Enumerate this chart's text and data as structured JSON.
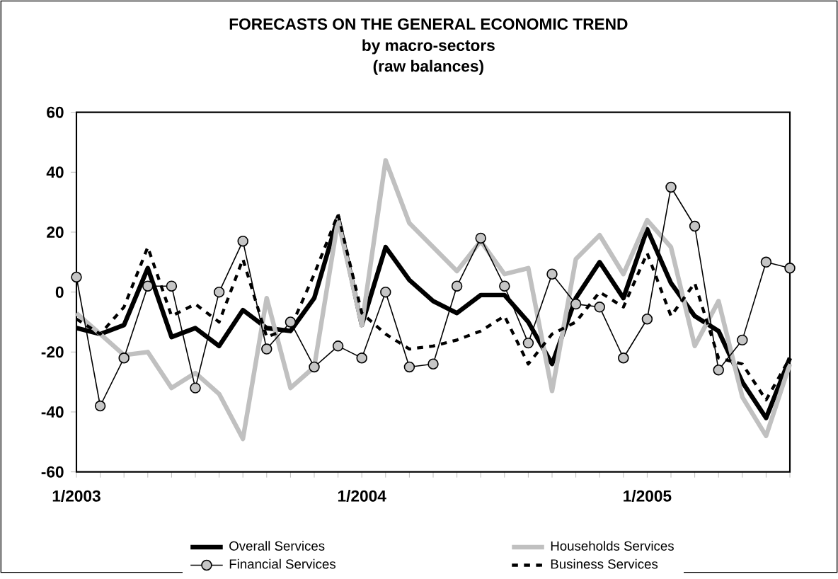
{
  "chart_data": {
    "type": "line",
    "title": "FORECASTS ON THE GENERAL ECONOMIC TREND",
    "subtitle": "by macro-sectors",
    "annotations": [
      "(raw balances)"
    ],
    "x": [
      "2003-01",
      "2003-02",
      "2003-03",
      "2003-04",
      "2003-05",
      "2003-06",
      "2003-07",
      "2003-08",
      "2003-09",
      "2003-10",
      "2003-11",
      "2003-12",
      "2004-01",
      "2004-02",
      "2004-03",
      "2004-04",
      "2004-05",
      "2004-06",
      "2004-07",
      "2004-08",
      "2004-09",
      "2004-10",
      "2004-11",
      "2004-12",
      "2005-01",
      "2005-02",
      "2005-03",
      "2005-04",
      "2005-05",
      "2005-06",
      "2005-07"
    ],
    "series": [
      {
        "name": "Overall Services",
        "color": "#000000",
        "line_style": "solid",
        "values": [
          -12,
          -14,
          -11,
          8,
          -15,
          -12,
          -18,
          -6,
          -12,
          -13,
          -2,
          25,
          -11,
          15,
          4,
          -3,
          -7,
          -1,
          -1,
          -10,
          -24,
          -2,
          10,
          -2,
          21,
          3,
          -8,
          -13,
          -30,
          -42,
          -22
        ]
      },
      {
        "name": "Households Services",
        "color": "#c0c0c0",
        "line_style": "solid",
        "values": [
          -7,
          -14,
          -21,
          -20,
          -32,
          -27,
          -34,
          -49,
          -2,
          -32,
          -25,
          24,
          -11,
          44,
          23,
          15,
          7,
          17,
          6,
          8,
          -33,
          11,
          19,
          6,
          24,
          15,
          -18,
          -3,
          -35,
          -48,
          -24
        ]
      },
      {
        "name": "Financial Services",
        "color": "#000000",
        "line_style": "solid",
        "marker": "circle",
        "values": [
          5,
          -38,
          -22,
          2,
          2,
          -32,
          0,
          17,
          -19,
          -10,
          -25,
          -18,
          -22,
          0,
          -25,
          -24,
          2,
          18,
          2,
          -17,
          6,
          -4,
          -5,
          -22,
          -9,
          35,
          22,
          -26,
          -16,
          10,
          8
        ]
      },
      {
        "name": "Business Services",
        "color": "#000000",
        "line_style": "dashed",
        "values": [
          -9,
          -14,
          -5,
          15,
          -8,
          -4,
          -10,
          11,
          -15,
          -12,
          6,
          26,
          -7,
          -14,
          -19,
          -18,
          -16,
          -13,
          -8,
          -24,
          -14,
          -10,
          0,
          -5,
          13,
          -8,
          3,
          -22,
          -24,
          -36,
          -22
        ]
      }
    ],
    "xlim": [
      "2003-01",
      "2005-07"
    ],
    "xticks": [
      {
        "value": "2003-01",
        "label": "1/2003"
      },
      {
        "value": "2003-02",
        "label": null
      },
      {
        "value": "2003-03",
        "label": null
      },
      {
        "value": "2003-04",
        "label": null
      },
      {
        "value": "2003-05",
        "label": null
      },
      {
        "value": "2003-06",
        "label": null
      },
      {
        "value": "2003-07",
        "label": null
      },
      {
        "value": "2003-08",
        "label": null
      },
      {
        "value": "2003-09",
        "label": null
      },
      {
        "value": "2003-10",
        "label": null
      },
      {
        "value": "2003-11",
        "label": null
      },
      {
        "value": "2003-12",
        "label": null
      },
      {
        "value": "2004-01",
        "label": "1/2004"
      },
      {
        "value": "2004-02",
        "label": null
      },
      {
        "value": "2004-03",
        "label": null
      },
      {
        "value": "2004-04",
        "label": null
      },
      {
        "value": "2004-05",
        "label": null
      },
      {
        "value": "2004-06",
        "label": null
      },
      {
        "value": "2004-07",
        "label": null
      },
      {
        "value": "2004-08",
        "label": null
      },
      {
        "value": "2004-09",
        "label": null
      },
      {
        "value": "2004-10",
        "label": null
      },
      {
        "value": "2004-11",
        "label": null
      },
      {
        "value": "2004-12",
        "label": null
      },
      {
        "value": "2005-01",
        "label": "1/2005"
      },
      {
        "value": "2005-02",
        "label": null
      },
      {
        "value": "2005-03",
        "label": null
      },
      {
        "value": "2005-04",
        "label": null
      },
      {
        "value": "2005-05",
        "label": null
      },
      {
        "value": "2005-06",
        "label": null
      },
      {
        "value": "2005-07",
        "label": null
      }
    ],
    "ylim": [
      -60,
      60
    ],
    "yticks": [
      -60,
      -40,
      -20,
      0,
      20,
      40,
      60
    ],
    "grid": false,
    "legend": "bottom"
  }
}
